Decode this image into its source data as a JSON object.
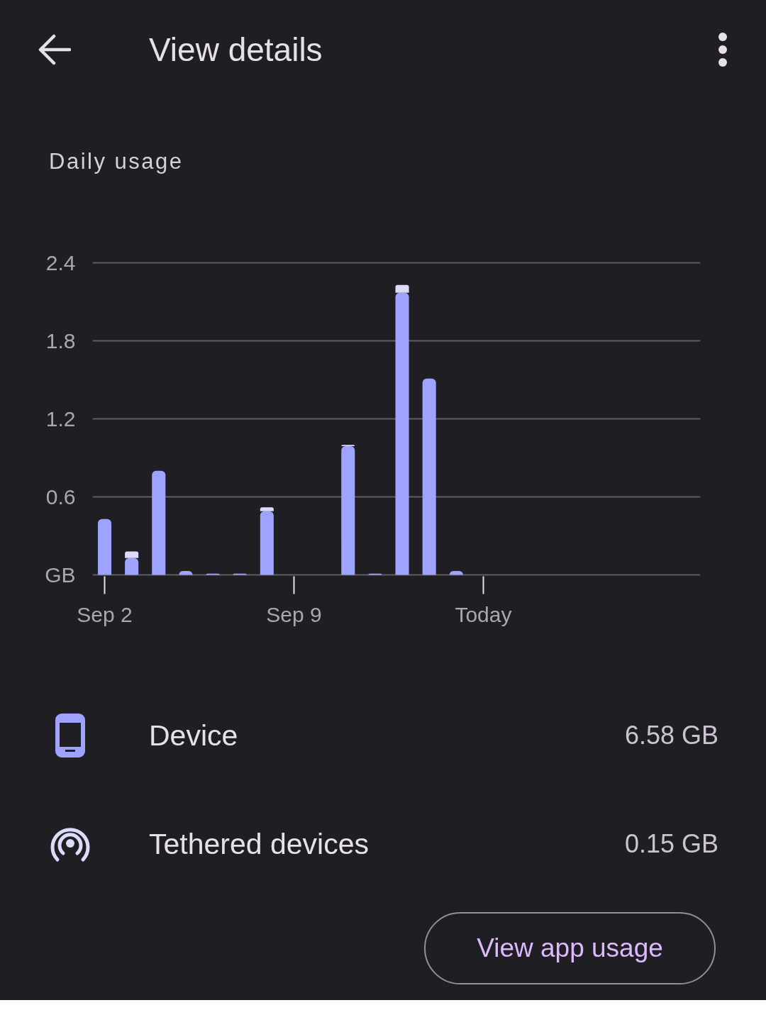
{
  "chart_data": {
    "type": "bar",
    "title": "View details",
    "subtitle": "Daily usage",
    "categories": [
      "Sep 2",
      null,
      null,
      null,
      null,
      null,
      null,
      "Sep 9",
      null,
      null,
      null,
      null,
      null,
      null,
      "Today"
    ],
    "stacked": true,
    "series": [
      {
        "name": "Device",
        "color": "#9da3ff",
        "values": [
          0.43,
          0.13,
          0.8,
          0.03,
          0.01,
          0.01,
          0.49,
          0,
          0,
          0.99,
          0.01,
          2.17,
          1.51,
          0.03,
          0
        ]
      },
      {
        "name": "Tethered devices",
        "color": "#dcdcfa",
        "values": [
          0,
          0.05,
          0,
          0,
          0,
          0,
          0.03,
          0,
          0,
          0.01,
          0,
          0.06,
          0,
          0,
          0
        ]
      }
    ],
    "ylim": [
      0,
      2.4
    ],
    "yticks": [
      {
        "value": 0,
        "label": "GB"
      },
      0.6,
      1.2,
      1.8,
      2.4
    ],
    "grid": "y",
    "legend": "bottom",
    "annotations": [
      "6.58 GB",
      "0.15 GB",
      "View app usage"
    ]
  }
}
